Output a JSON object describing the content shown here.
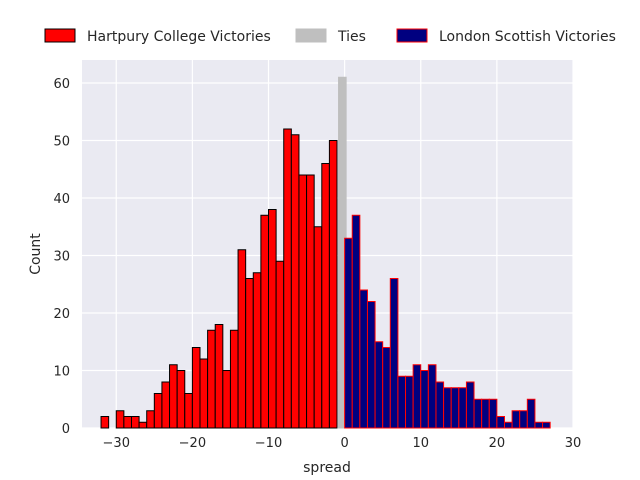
{
  "chart_data": {
    "type": "bar",
    "title": "",
    "xlabel": "spread",
    "ylabel": "Count",
    "xlim": [
      -34.5,
      30
    ],
    "ylim": [
      0,
      64
    ],
    "x_ticks": [
      -30,
      -20,
      -10,
      0,
      10,
      20,
      30
    ],
    "x_tick_labels": [
      "−30",
      "−20",
      "−10",
      "0",
      "10",
      "20",
      "30"
    ],
    "y_ticks": [
      0,
      10,
      20,
      30,
      40,
      50,
      60
    ],
    "y_tick_labels": [
      "0",
      "10",
      "20",
      "30",
      "40",
      "50",
      "60"
    ],
    "grid": true,
    "legend_position": "top, above plot, horizontal",
    "bin_width": 1,
    "series": [
      {
        "name": "Hartpury College Victories",
        "face_color": "#ff0000",
        "edge_color": "#000000",
        "bins_left": [
          -32,
          -31,
          -30,
          -29,
          -28,
          -27,
          -26,
          -25,
          -24,
          -23,
          -22,
          -21,
          -20,
          -19,
          -18,
          -17,
          -16,
          -15,
          -14,
          -13,
          -12,
          -11,
          -10,
          -9,
          -8,
          -7,
          -6,
          -5,
          -4,
          -3,
          -2,
          -1
        ],
        "values": [
          2,
          0,
          3,
          2,
          2,
          1,
          3,
          6,
          8,
          11,
          10,
          6,
          14,
          12,
          17,
          18,
          10,
          17,
          31,
          26,
          27,
          37,
          38,
          29,
          52,
          51,
          44,
          44,
          35,
          46,
          50,
          0
        ]
      },
      {
        "name": "Ties",
        "face_color": "#bfbfbf",
        "edge_color": "#bfbfbf",
        "bins_left": [
          -0.8
        ],
        "values": [
          61
        ]
      },
      {
        "name": "London Scottish Victories",
        "face_color": "#000080",
        "edge_color": "#ff0000",
        "bins_left": [
          0,
          1,
          2,
          3,
          4,
          5,
          6,
          7,
          8,
          9,
          10,
          11,
          12,
          13,
          14,
          15,
          16,
          17,
          18,
          19,
          20,
          21,
          22,
          23,
          24,
          25,
          26,
          27
        ],
        "values": [
          33,
          37,
          24,
          22,
          15,
          14,
          26,
          9,
          9,
          11,
          10,
          11,
          8,
          7,
          7,
          7,
          8,
          5,
          5,
          5,
          2,
          1,
          3,
          3,
          5,
          1,
          1,
          0
        ]
      }
    ]
  },
  "colors": {
    "plot_background": "#eaeaf2",
    "grid": "#ffffff",
    "text": "#262626"
  }
}
